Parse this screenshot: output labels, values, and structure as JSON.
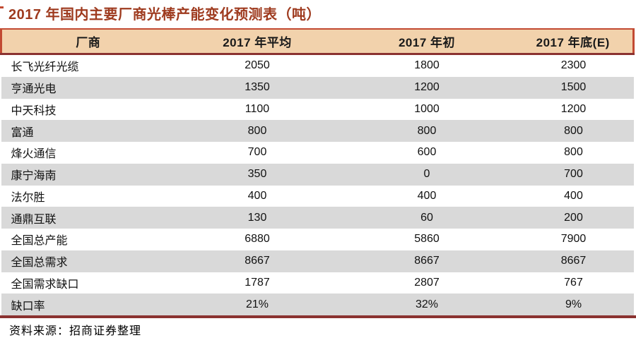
{
  "title": "2017 年国内主要厂商光棒产能变化预测表（吨）",
  "source_note": "资料来源：招商证券整理",
  "colors": {
    "title_text": "#9E3A1E",
    "border_red": "#C24A32",
    "border_maroon": "#8B3230",
    "header_bg": "#F2D2AC",
    "row_alt_bg": "#D9D9D9"
  },
  "chart_data": {
    "type": "table",
    "title": "2017 年国内主要厂商光棒产能变化预测表（吨）",
    "columns": [
      "厂商",
      "2017 年平均",
      "2017 年初",
      "2017 年底(E)"
    ],
    "rows": [
      [
        "长飞光纤光缆",
        "2050",
        "1800",
        "2300"
      ],
      [
        "亨通光电",
        "1350",
        "1200",
        "1500"
      ],
      [
        "中天科技",
        "1100",
        "1000",
        "1200"
      ],
      [
        "富通",
        "800",
        "800",
        "800"
      ],
      [
        "烽火通信",
        "700",
        "600",
        "800"
      ],
      [
        "康宁海南",
        "350",
        "0",
        "700"
      ],
      [
        "法尔胜",
        "400",
        "400",
        "400"
      ],
      [
        "通鼎互联",
        "130",
        "60",
        "200"
      ],
      [
        "全国总产能",
        "6880",
        "5860",
        "7900"
      ],
      [
        "全国总需求",
        "8667",
        "8667",
        "8667"
      ],
      [
        "全国需求缺口",
        "1787",
        "2807",
        "767"
      ],
      [
        "缺口率",
        "21%",
        "32%",
        "9%"
      ]
    ]
  }
}
